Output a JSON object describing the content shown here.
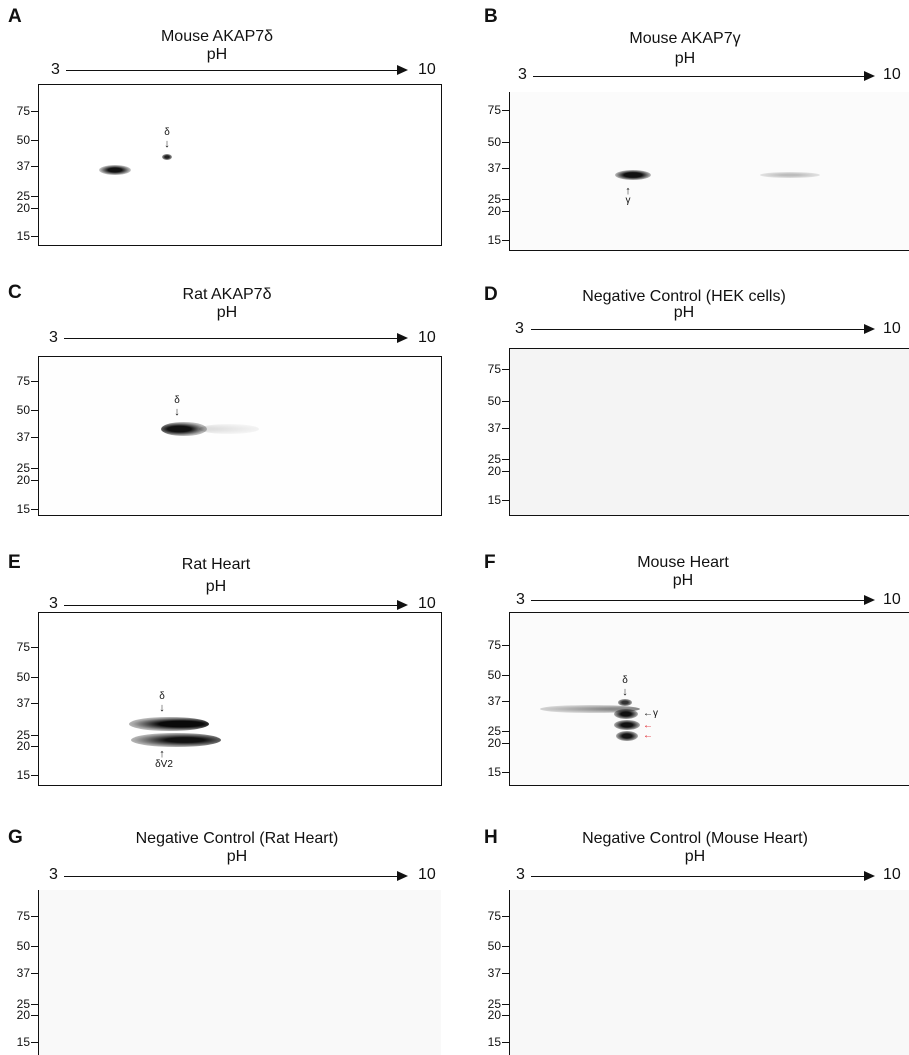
{
  "axis": {
    "ph_label": "pH",
    "ph_start": "3",
    "ph_end": "10"
  },
  "mw_ticks": [
    "75",
    "50",
    "37",
    "25",
    "20",
    "15"
  ],
  "panels": [
    {
      "letter": "A",
      "title": "Mouse AKAP7δ",
      "ph_end": "10",
      "labels": {
        "delta": "δ"
      }
    },
    {
      "letter": "B",
      "title": "Mouse AKAP7γ",
      "ph_end": "10",
      "labels": {
        "gamma": "γ"
      }
    },
    {
      "letter": "C",
      "title": "Rat AKAP7δ",
      "ph_end": "10",
      "labels": {
        "delta": "δ"
      }
    },
    {
      "letter": "D",
      "title": "Negative Control (HEK cells)",
      "ph_end": "10",
      "labels": {}
    },
    {
      "letter": "E",
      "title": "Rat Heart",
      "ph_end": "10",
      "labels": {
        "delta": "δ",
        "deltav2": "δV2"
      }
    },
    {
      "letter": "F",
      "title": "Mouse Heart",
      "ph_end": "10",
      "labels": {
        "delta": "δ",
        "gamma": "γ"
      }
    },
    {
      "letter": "G",
      "title": "Negative Control (Rat Heart)",
      "ph_end": "10",
      "labels": {}
    },
    {
      "letter": "H",
      "title": "Negative Control (Mouse Heart)",
      "ph_end": "10",
      "labels": {}
    }
  ],
  "colors": {
    "ink": "#111111",
    "red_arrow": "#e0202a",
    "gel_bg": "#ffffff",
    "noise_bg": "#f6f6f6"
  }
}
